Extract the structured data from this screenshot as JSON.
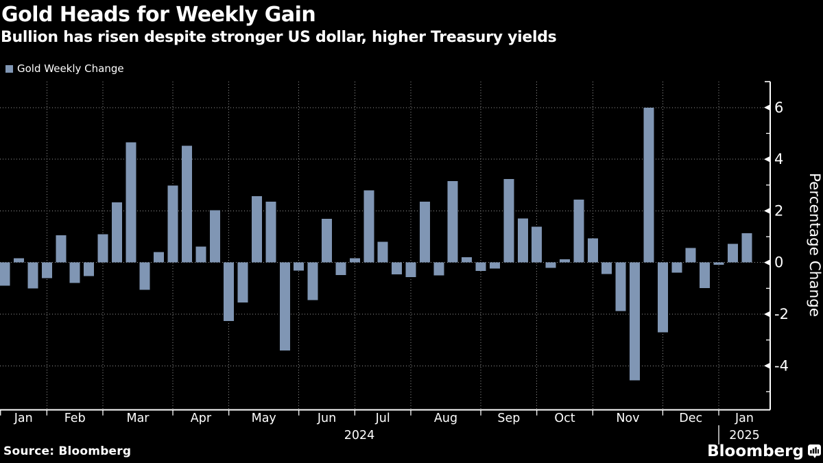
{
  "header": {
    "title": "Gold Heads for Weekly Gain",
    "subtitle": "Bullion has risen despite stronger US dollar, higher Treasury yields"
  },
  "legend": {
    "label": "Gold Weekly Change",
    "swatch_color": "#8096B4"
  },
  "source": {
    "text": "Source: Bloomberg"
  },
  "brand": {
    "name": "Bloomberg"
  },
  "colors": {
    "background": "#000000",
    "bar": "#8096B4",
    "grid": "#9a9a9a",
    "axis": "#ffffff",
    "text": "#ffffff"
  },
  "chart_data": {
    "type": "bar",
    "title": "Gold Heads for Weekly Gain",
    "series_name": "Gold Weekly Change",
    "xlabel": "",
    "ylabel": "Percentage Change",
    "ylim": [
      -5.7,
      7.0
    ],
    "grid": true,
    "legend_position": "top-left",
    "y_axis": {
      "major_ticks": [
        6,
        4,
        2,
        0,
        -2,
        -4
      ],
      "major_tick_labels": [
        "6",
        "4",
        "2",
        "0",
        "-2",
        "-4"
      ],
      "minor_ticks": [
        5,
        3,
        1,
        -1,
        -3,
        -5
      ]
    },
    "x_axis": {
      "month_labels": [
        "Jan",
        "Feb",
        "Mar",
        "Apr",
        "May",
        "Jun",
        "Jul",
        "Aug",
        "Sep",
        "Oct",
        "Nov",
        "Dec",
        "Jan"
      ],
      "year_labels": [
        "2024",
        "2025"
      ]
    },
    "weeks": [
      {
        "week_ending": "2024-01-05",
        "value": -0.9
      },
      {
        "week_ending": "2024-01-12",
        "value": 0.16
      },
      {
        "week_ending": "2024-01-19",
        "value": -1.01
      },
      {
        "week_ending": "2024-01-26",
        "value": -0.61
      },
      {
        "week_ending": "2024-02-02",
        "value": 1.06
      },
      {
        "week_ending": "2024-02-09",
        "value": -0.79
      },
      {
        "week_ending": "2024-02-16",
        "value": -0.53
      },
      {
        "week_ending": "2024-02-23",
        "value": 1.09
      },
      {
        "week_ending": "2024-03-01",
        "value": 2.33
      },
      {
        "week_ending": "2024-03-08",
        "value": 4.65
      },
      {
        "week_ending": "2024-03-15",
        "value": -1.06
      },
      {
        "week_ending": "2024-03-22",
        "value": 0.41
      },
      {
        "week_ending": "2024-03-29",
        "value": 2.98
      },
      {
        "week_ending": "2024-04-05",
        "value": 4.52
      },
      {
        "week_ending": "2024-04-12",
        "value": 0.62
      },
      {
        "week_ending": "2024-04-19",
        "value": 2.02
      },
      {
        "week_ending": "2024-04-26",
        "value": -2.27
      },
      {
        "week_ending": "2024-05-03",
        "value": -1.55
      },
      {
        "week_ending": "2024-05-10",
        "value": 2.57
      },
      {
        "week_ending": "2024-05-17",
        "value": 2.35
      },
      {
        "week_ending": "2024-05-24",
        "value": -3.41
      },
      {
        "week_ending": "2024-05-31",
        "value": -0.31
      },
      {
        "week_ending": "2024-06-07",
        "value": -1.46
      },
      {
        "week_ending": "2024-06-14",
        "value": 1.69
      },
      {
        "week_ending": "2024-06-21",
        "value": -0.49
      },
      {
        "week_ending": "2024-06-28",
        "value": 0.16
      },
      {
        "week_ending": "2024-07-05",
        "value": 2.8
      },
      {
        "week_ending": "2024-07-12",
        "value": 0.8
      },
      {
        "week_ending": "2024-07-19",
        "value": -0.46
      },
      {
        "week_ending": "2024-07-26",
        "value": -0.57
      },
      {
        "week_ending": "2024-08-02",
        "value": 2.36
      },
      {
        "week_ending": "2024-08-09",
        "value": -0.5
      },
      {
        "week_ending": "2024-08-16",
        "value": 3.15
      },
      {
        "week_ending": "2024-08-23",
        "value": 0.2
      },
      {
        "week_ending": "2024-08-30",
        "value": -0.33
      },
      {
        "week_ending": "2024-09-06",
        "value": -0.24
      },
      {
        "week_ending": "2024-09-13",
        "value": 3.23
      },
      {
        "week_ending": "2024-09-20",
        "value": 1.71
      },
      {
        "week_ending": "2024-09-27",
        "value": 1.38
      },
      {
        "week_ending": "2024-10-04",
        "value": -0.21
      },
      {
        "week_ending": "2024-10-11",
        "value": 0.12
      },
      {
        "week_ending": "2024-10-18",
        "value": 2.43
      },
      {
        "week_ending": "2024-10-25",
        "value": 0.94
      },
      {
        "week_ending": "2024-11-01",
        "value": -0.44
      },
      {
        "week_ending": "2024-11-08",
        "value": -1.88
      },
      {
        "week_ending": "2024-11-15",
        "value": -4.56
      },
      {
        "week_ending": "2024-11-22",
        "value": 6.0
      },
      {
        "week_ending": "2024-11-29",
        "value": -2.7
      },
      {
        "week_ending": "2024-12-06",
        "value": -0.39
      },
      {
        "week_ending": "2024-12-13",
        "value": 0.56
      },
      {
        "week_ending": "2024-12-20",
        "value": -0.99
      },
      {
        "week_ending": "2024-12-27",
        "value": -0.09
      },
      {
        "week_ending": "2025-01-03",
        "value": 0.72
      },
      {
        "week_ending": "2025-01-10",
        "value": 1.13
      }
    ]
  }
}
